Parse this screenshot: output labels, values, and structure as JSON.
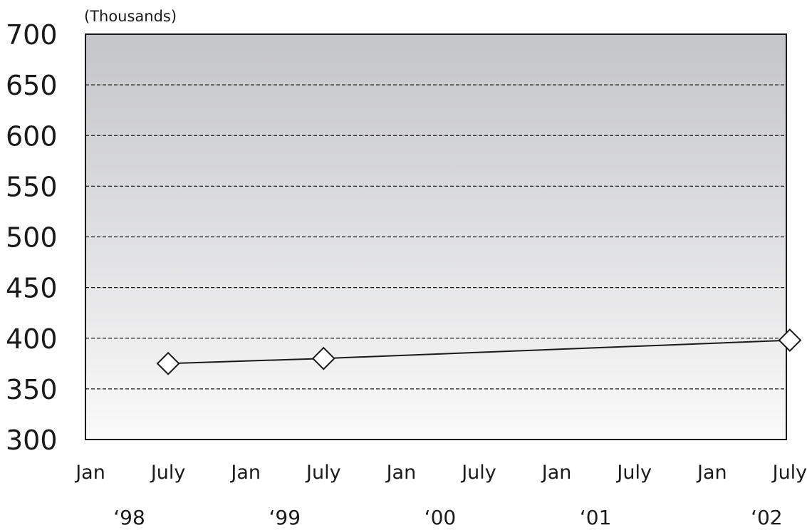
{
  "chart_data": {
    "type": "line",
    "unit_label": "(Thousands)",
    "ylim": [
      300,
      700
    ],
    "y_ticks": [
      "700",
      "650",
      "600",
      "550",
      "500",
      "450",
      "400",
      "350",
      "300"
    ],
    "x_ticks": [
      "Jan",
      "July",
      "Jan",
      "July",
      "Jan",
      "July",
      "Jan",
      "July",
      "Jan",
      "July"
    ],
    "year_labels": [
      "‘98",
      "‘99",
      "‘00",
      "‘01",
      "‘02"
    ],
    "grid": true,
    "series": [
      {
        "x": [
          "1998-07",
          "1999-07",
          "2002-07"
        ],
        "values": [
          375,
          380,
          398
        ]
      }
    ],
    "colors": {
      "plot_top": "#c4c5c8",
      "plot_bottom": "#fafafa",
      "line": "#1a1a1a",
      "marker_fill": "#ffffff"
    }
  }
}
